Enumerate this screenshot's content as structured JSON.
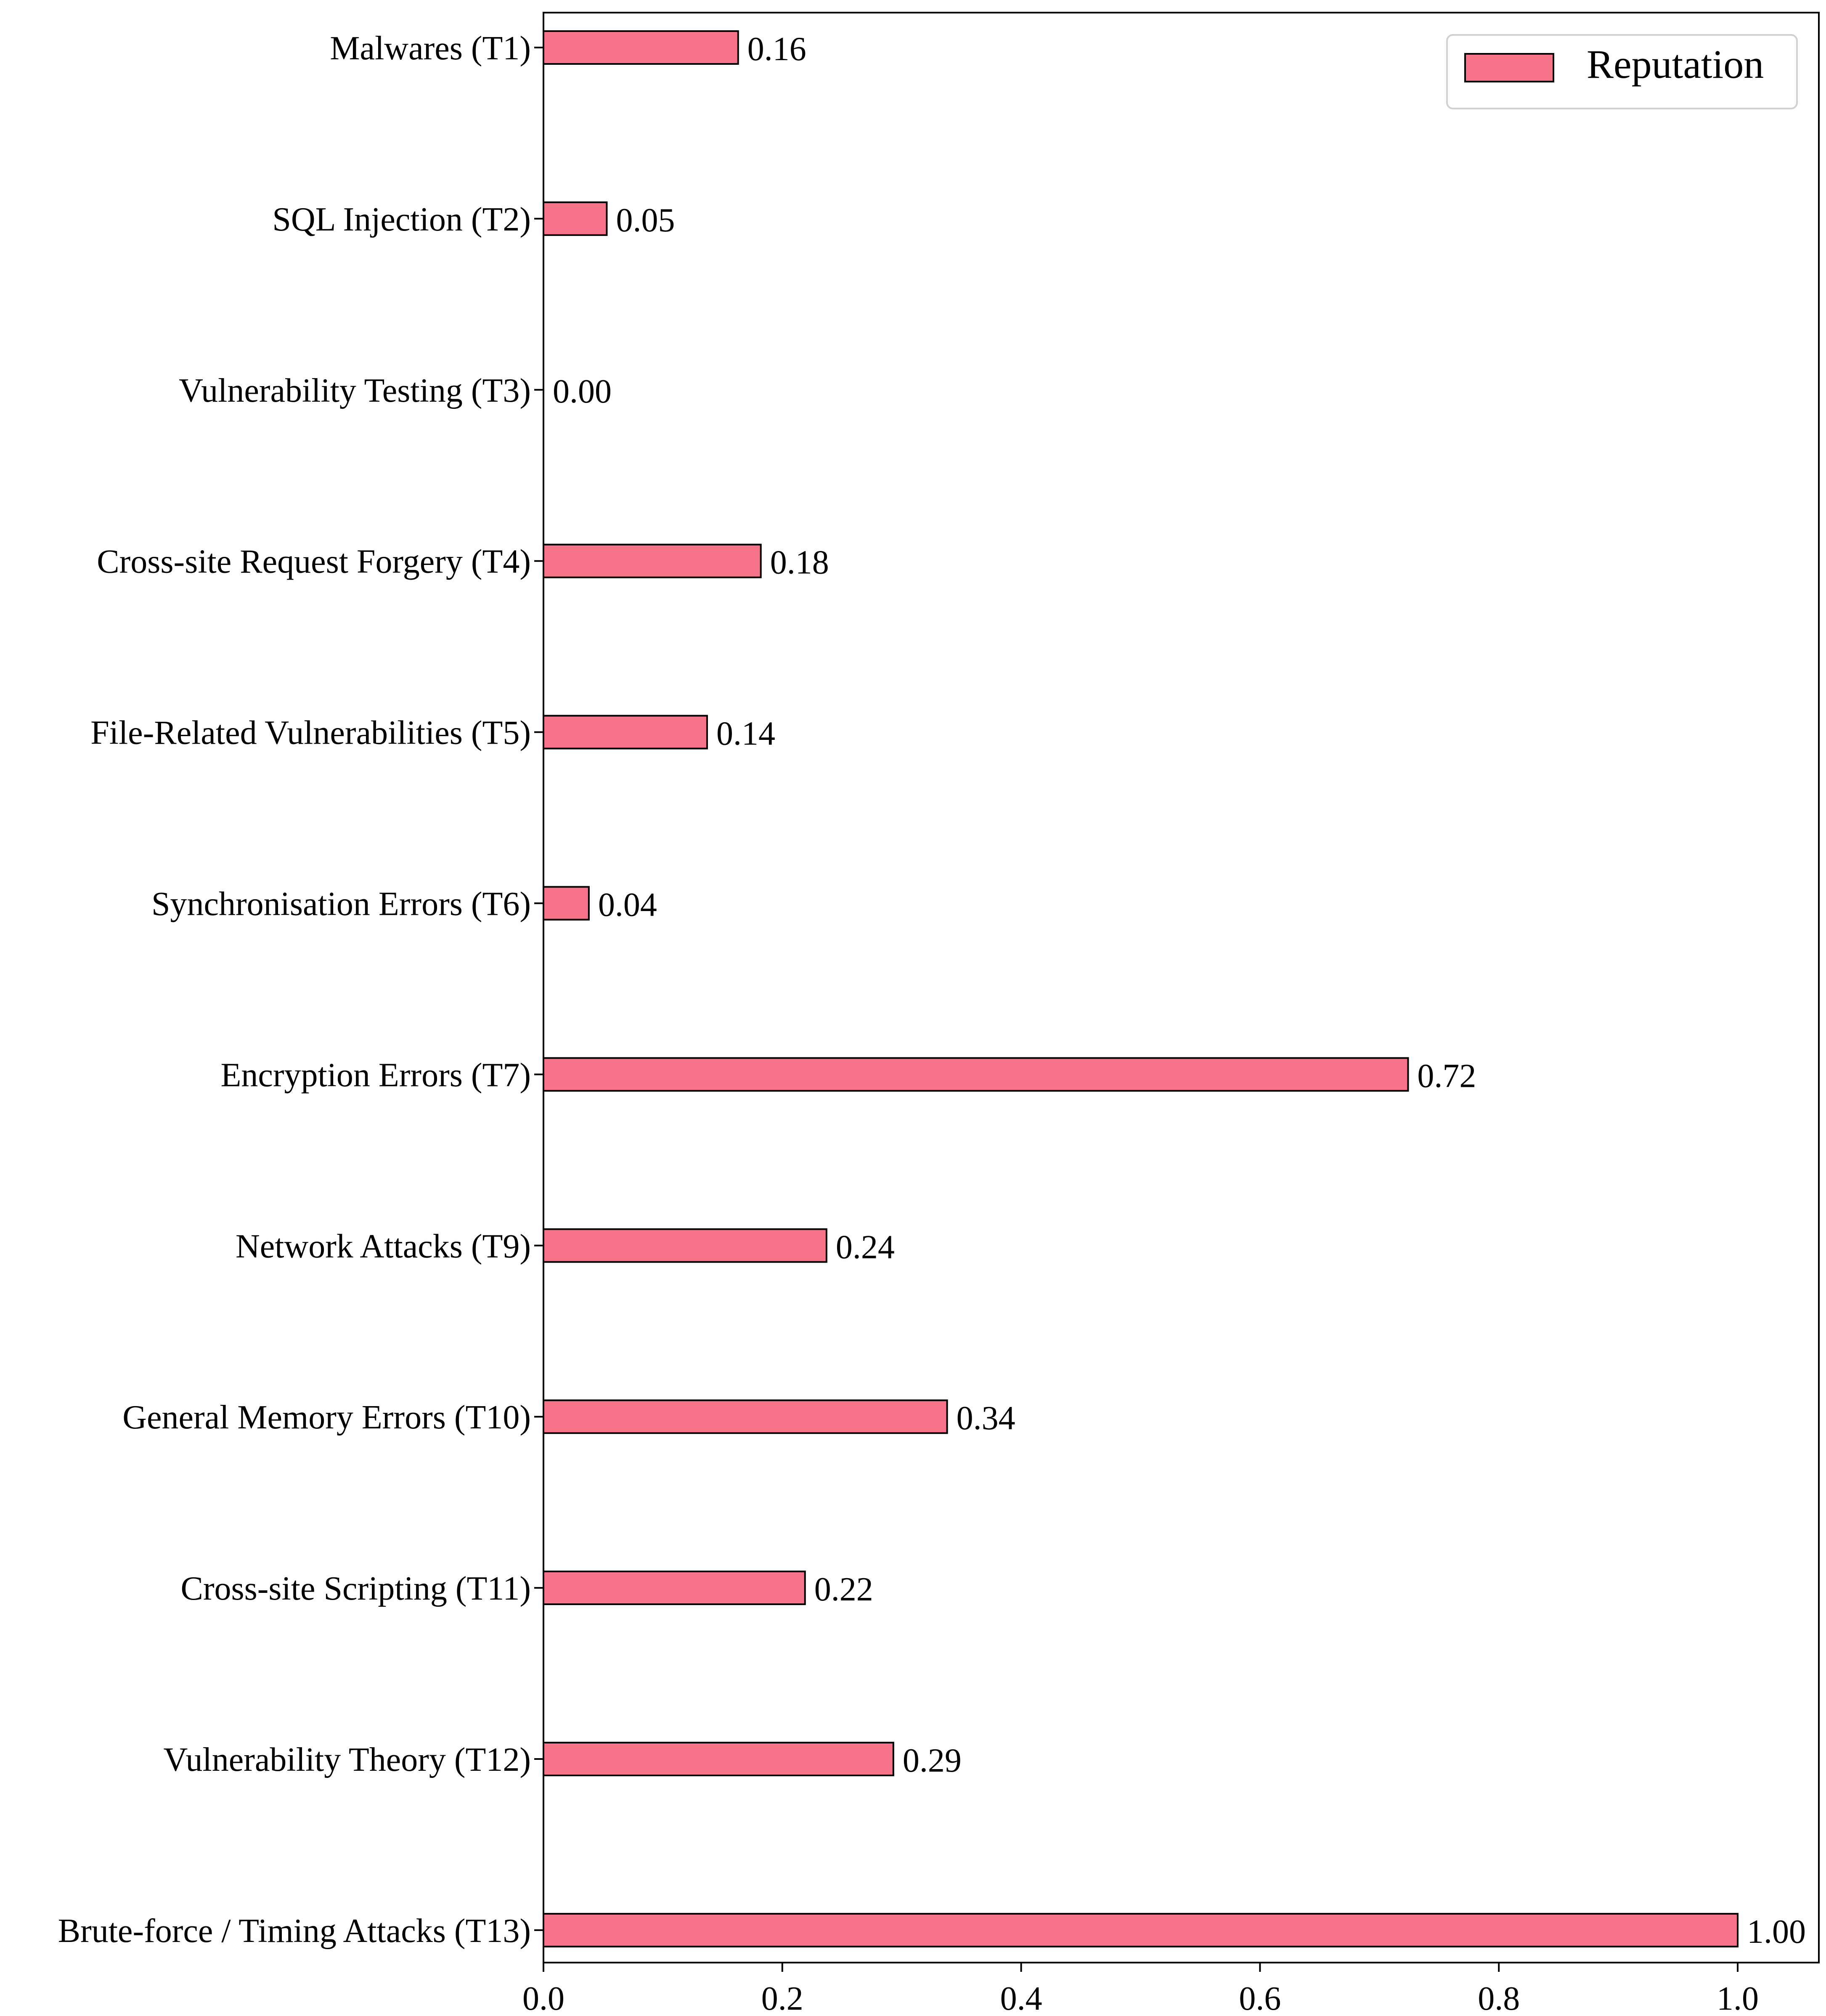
{
  "chart_data": {
    "type": "bar",
    "orientation": "horizontal",
    "title": "",
    "xlabel": "",
    "ylabel": "",
    "categories": [
      "Malwares (T1)",
      "SQL Injection (T2)",
      "Vulnerability Testing (T3)",
      "Cross-site Request Forgery (T4)",
      "File-Related Vulnerabilities (T5)",
      "Synchronisation Errors (T6)",
      "Encryption Errors (T7)",
      "Network Attacks (T9)",
      "General Memory Errors (T10)",
      "Cross-site Scripting (T11)",
      "Vulnerability Theory (T12)",
      "Brute-force / Timing Attacks (T13)"
    ],
    "series": [
      {
        "name": "Reputation",
        "color": "#f7738a",
        "values": [
          0.163,
          0.053,
          0.0,
          0.182,
          0.137,
          0.038,
          0.724,
          0.237,
          0.338,
          0.219,
          0.293,
          1.0
        ],
        "value_labels": [
          "0.16",
          "0.05",
          "0.00",
          "0.18",
          "0.14",
          "0.04",
          "0.72",
          "0.24",
          "0.34",
          "0.22",
          "0.29",
          "1.00"
        ]
      }
    ],
    "xlim": [
      0.0,
      1.07
    ],
    "xticks": [
      0.0,
      0.2,
      0.4,
      0.6,
      0.8,
      1.0
    ],
    "xtick_labels": [
      "0.0",
      "0.2",
      "0.4",
      "0.6",
      "0.8",
      "1.0"
    ],
    "grid": false,
    "legend_position": "top-right"
  }
}
